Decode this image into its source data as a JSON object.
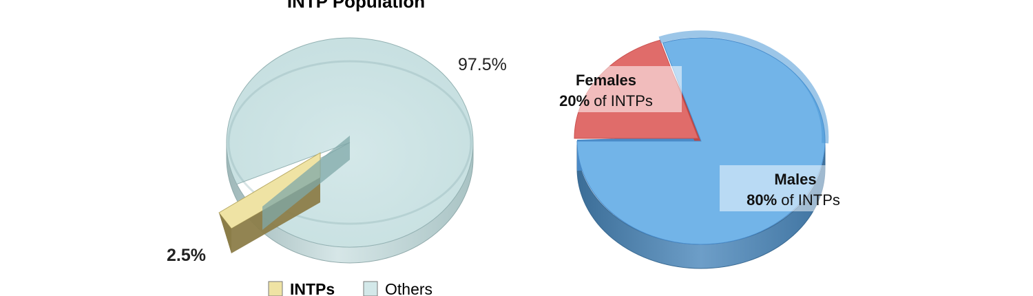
{
  "chart_data": [
    {
      "type": "pie",
      "style": "3d",
      "title": "INTP Population",
      "categories": [
        "INTPs",
        "Others"
      ],
      "values": [
        2.5,
        97.5
      ],
      "data_labels": [
        "2.5%",
        "97.5%"
      ],
      "colors": [
        "#ecdfa0",
        "#cde4e5"
      ],
      "legend": {
        "placement": "bottom",
        "entries": [
          {
            "label": "INTPs",
            "color": "#efe3a4"
          },
          {
            "label": "Others",
            "color": "#d3e8e9"
          }
        ]
      }
    },
    {
      "type": "pie",
      "style": "3d",
      "categories": [
        "Females",
        "Males"
      ],
      "values": [
        20,
        80
      ],
      "data_labels": [
        {
          "name": "Females",
          "value": "20%",
          "suffix": "of INTPs"
        },
        {
          "name": "Males",
          "value": "80%",
          "suffix": "of INTPs"
        }
      ],
      "colors": [
        "#e06c6a",
        "#72b4e8"
      ]
    }
  ]
}
